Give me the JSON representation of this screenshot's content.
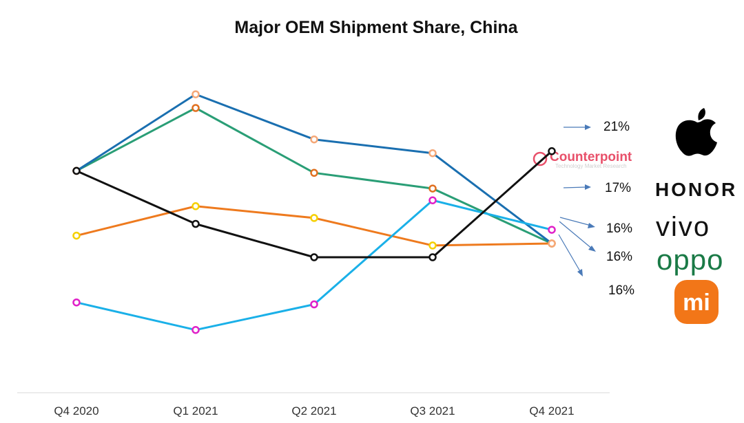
{
  "chart_data": {
    "type": "line",
    "title": "Major OEM Shipment Share, China",
    "categories": [
      "Q4 2020",
      "Q1 2021",
      "Q2 2021",
      "Q3 2021",
      "Q4 2021"
    ],
    "xlabel": "",
    "ylabel": "",
    "ylim": [
      8,
      28
    ],
    "grid": false,
    "series": [
      {
        "name": "Apple",
        "color": "#111111",
        "marker": "#111111",
        "values": [
          20,
          17.3,
          15.6,
          15.6,
          21
        ]
      },
      {
        "name": "Honor",
        "color": "#1ab0e8",
        "marker": "#e020c8",
        "values": [
          13.3,
          11.9,
          13.2,
          18.5,
          17
        ]
      },
      {
        "name": "vivo",
        "color": "#1a6fb0",
        "marker": "#f5a878",
        "values": [
          20,
          23.9,
          21.6,
          20.9,
          16.3
        ]
      },
      {
        "name": "OPPO",
        "color": "#2a9e76",
        "marker": "#e07020",
        "values": [
          20,
          23.2,
          19.9,
          19.1,
          16.3
        ]
      },
      {
        "name": "Xiaomi",
        "color": "#ee7a1e",
        "marker": "#f5d000",
        "values": [
          16.7,
          18.2,
          17.6,
          16.2,
          16.3
        ]
      }
    ],
    "end_labels": [
      "21%",
      "17%",
      "16%",
      "16%",
      "16%"
    ]
  },
  "watermark": {
    "name": "Counterpoint",
    "tagline": "Technology Market Research"
  },
  "logos": {
    "apple": "apple-logo",
    "honor": "HONOR",
    "vivo": "vivo",
    "oppo": "oppo",
    "xiaomi": "mi"
  },
  "colors": {
    "arrow": "#4a7ab8",
    "brand": "#e8506a"
  }
}
